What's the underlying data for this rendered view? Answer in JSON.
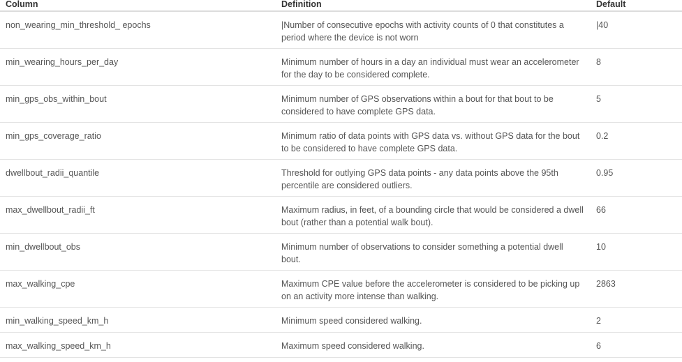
{
  "table": {
    "headers": {
      "column": "Column",
      "definition": "Definition",
      "default": "Default"
    },
    "rows": [
      {
        "column": "non_wearing_min_threshold_ epochs",
        "definition": "|Number of consecutive epochs with activity counts of 0 that constitutes a period where the device is not worn",
        "default": "|40"
      },
      {
        "column": "min_wearing_hours_per_day",
        "definition": "Minimum number of hours in a day an individual must wear an accelerometer for the day to be considered complete.",
        "default": "8"
      },
      {
        "column": "min_gps_obs_within_bout",
        "definition": "Minimum number of GPS observations within a bout for that bout to be considered to have complete GPS data.",
        "default": "5"
      },
      {
        "column": "min_gps_coverage_ratio",
        "definition": "Minimum ratio of data points with GPS data vs. without GPS data for the bout to be considered to have complete GPS data.",
        "default": "0.2"
      },
      {
        "column": "dwellbout_radii_quantile",
        "definition": "Threshold for outlying GPS data points - any data points above the 95th percentile are considered outliers.",
        "default": "0.95"
      },
      {
        "column": "max_dwellbout_radii_ft",
        "definition": "Maximum radius, in feet, of a bounding circle that would be considered a dwell bout (rather than a potential walk bout).",
        "default": "66"
      },
      {
        "column": "min_dwellbout_obs",
        "definition": "Minimum number of observations to consider something a potential dwell bout.",
        "default": "10"
      },
      {
        "column": "max_walking_cpe",
        "definition": "Maximum CPE value before the accelerometer is considered to be picking up on an activity more intense than walking.",
        "default": "2863"
      },
      {
        "column": "min_walking_speed_km_h",
        "definition": "Minimum speed considered walking.",
        "default": "2"
      },
      {
        "column": "max_walking_speed_km_h",
        "definition": "Maximum speed considered walking.",
        "default": "6"
      }
    ]
  }
}
